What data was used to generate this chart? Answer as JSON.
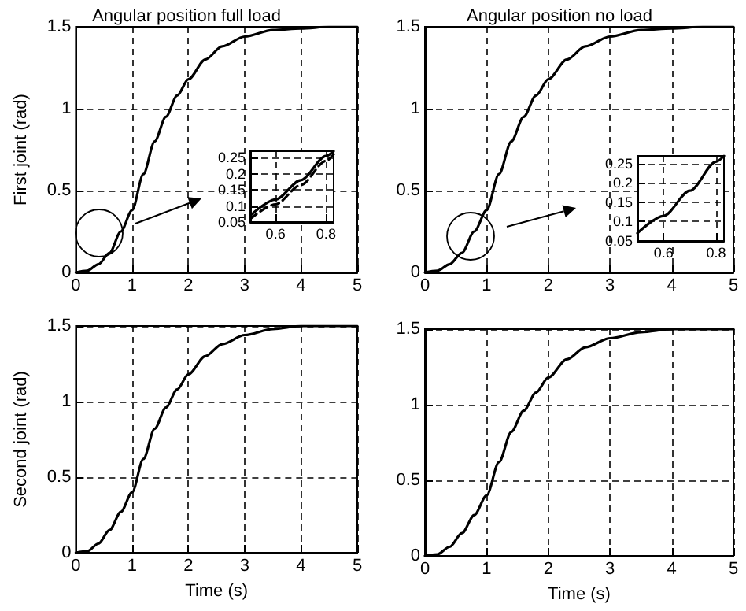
{
  "chart_data": [
    {
      "type": "line",
      "title": "Angular position full load",
      "ylabel": "First joint (rad)",
      "x": [
        0,
        0.2,
        0.4,
        0.6,
        0.8,
        1.0,
        1.2,
        1.4,
        1.6,
        1.8,
        2.0,
        2.3,
        2.6,
        3.0,
        3.5,
        4.0,
        4.5,
        5
      ],
      "series": [
        {
          "color": "#000000",
          "line_style": "solid",
          "values": [
            0,
            0.01,
            0.05,
            0.12,
            0.25,
            0.38,
            0.6,
            0.8,
            0.95,
            1.08,
            1.18,
            1.3,
            1.38,
            1.44,
            1.48,
            1.49,
            1.5,
            1.5
          ]
        }
      ],
      "xlim": [
        0,
        5
      ],
      "ylim": [
        0,
        1.5
      ],
      "xticks": [
        0,
        1,
        2,
        3,
        4,
        5
      ],
      "yticks": [
        0,
        0.5,
        1,
        1.5
      ],
      "grid": true
    },
    {
      "type": "line",
      "title": "Angular position no load",
      "x": [
        0,
        0.2,
        0.4,
        0.6,
        0.8,
        1.0,
        1.2,
        1.4,
        1.6,
        1.8,
        2.0,
        2.3,
        2.6,
        3.0,
        3.5,
        4.0,
        4.5,
        5
      ],
      "series": [
        {
          "color": "#000000",
          "line_style": "solid",
          "values": [
            0,
            0.01,
            0.05,
            0.12,
            0.25,
            0.38,
            0.6,
            0.8,
            0.95,
            1.08,
            1.18,
            1.3,
            1.38,
            1.44,
            1.48,
            1.49,
            1.5,
            1.5
          ]
        }
      ],
      "xlim": [
        0,
        5
      ],
      "ylim": [
        0,
        1.5
      ],
      "xticks": [
        0,
        1,
        2,
        3,
        4,
        5
      ],
      "yticks": [
        0,
        0.5,
        1,
        1.5
      ],
      "grid": true
    },
    {
      "type": "line",
      "ylabel": "Second joint (rad)",
      "xlabel": "Time (s)",
      "x": [
        0,
        0.2,
        0.4,
        0.6,
        0.8,
        1.0,
        1.2,
        1.4,
        1.6,
        1.8,
        2.0,
        2.3,
        2.6,
        3.0,
        3.5,
        4.0,
        4.5,
        5
      ],
      "series": [
        {
          "color": "#000000",
          "line_style": "solid",
          "values": [
            0,
            0.01,
            0.06,
            0.15,
            0.27,
            0.4,
            0.62,
            0.82,
            0.96,
            1.08,
            1.18,
            1.3,
            1.38,
            1.44,
            1.48,
            1.5,
            1.5,
            1.5
          ]
        }
      ],
      "xlim": [
        0,
        5
      ],
      "ylim": [
        0,
        1.5
      ],
      "xticks": [
        0,
        1,
        2,
        3,
        4,
        5
      ],
      "yticks": [
        0,
        0.5,
        1,
        1.5
      ],
      "grid": true
    },
    {
      "type": "line",
      "xlabel": "Time (s)",
      "x": [
        0,
        0.2,
        0.4,
        0.6,
        0.8,
        1.0,
        1.2,
        1.4,
        1.6,
        1.8,
        2.0,
        2.3,
        2.6,
        3.0,
        3.5,
        4.0,
        4.5,
        5
      ],
      "series": [
        {
          "color": "#000000",
          "line_style": "solid",
          "values": [
            0,
            0.01,
            0.06,
            0.15,
            0.27,
            0.4,
            0.62,
            0.82,
            0.96,
            1.08,
            1.18,
            1.3,
            1.38,
            1.44,
            1.48,
            1.5,
            1.5,
            1.5
          ]
        }
      ],
      "xlim": [
        0,
        5
      ],
      "ylim": [
        0,
        1.5
      ],
      "xticks": [
        0,
        1,
        2,
        3,
        4,
        5
      ],
      "yticks": [
        0,
        0.5,
        1,
        1.5
      ],
      "grid": true
    },
    {
      "type": "line",
      "x": [
        0.5,
        0.6,
        0.7,
        0.8,
        0.83
      ],
      "series": [
        {
          "color": "#000000",
          "line_style": "solid",
          "values": [
            0.07,
            0.12,
            0.18,
            0.255,
            0.27
          ]
        },
        {
          "color": "#000000",
          "line_style": "dashed",
          "values": [
            0.06,
            0.105,
            0.165,
            0.24,
            0.26
          ]
        }
      ],
      "xlim": [
        0.5,
        0.83
      ],
      "ylim": [
        0.05,
        0.27
      ],
      "xticks": [
        0.6,
        0.8
      ],
      "yticks": [
        0.05,
        0.1,
        0.15,
        0.2,
        0.25
      ],
      "grid": true
    },
    {
      "type": "line",
      "x": [
        0.5,
        0.6,
        0.7,
        0.8,
        0.83
      ],
      "series": [
        {
          "color": "#000000",
          "line_style": "solid",
          "values": [
            0.07,
            0.115,
            0.18,
            0.255,
            0.27
          ]
        }
      ],
      "xlim": [
        0.5,
        0.83
      ],
      "ylim": [
        0.05,
        0.27
      ],
      "xticks": [
        0.6,
        0.8
      ],
      "yticks": [
        0.05,
        0.1,
        0.15,
        0.2,
        0.25
      ],
      "grid": true
    }
  ]
}
